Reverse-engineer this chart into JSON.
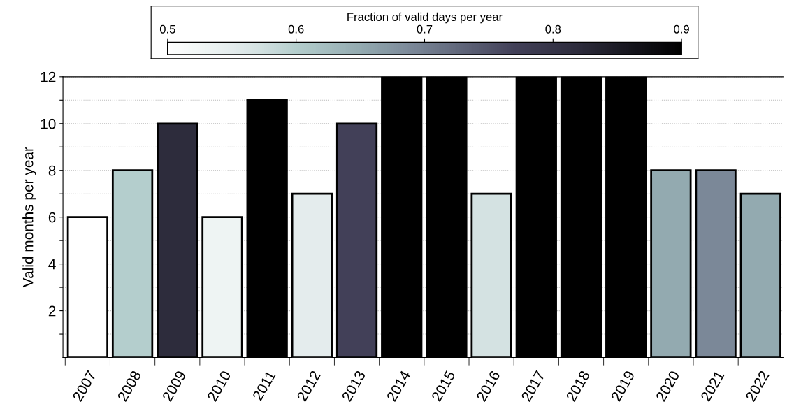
{
  "chart_data": {
    "type": "bar",
    "ylabel": "Valid months per year",
    "clabel": "Fraction of valid days per year",
    "categories": [
      "2007",
      "2008",
      "2009",
      "2010",
      "2011",
      "2012",
      "2013",
      "2014",
      "2015",
      "2016",
      "2017",
      "2018",
      "2019",
      "2020",
      "2021",
      "2022"
    ],
    "values": [
      6,
      8,
      10,
      6,
      11,
      7,
      10,
      12,
      12,
      7,
      12,
      12,
      12,
      8,
      8,
      7
    ],
    "cvalues": [
      0.5,
      0.6,
      0.82,
      0.53,
      0.9,
      0.55,
      0.77,
      0.9,
      0.9,
      0.57,
      0.9,
      0.9,
      0.9,
      0.65,
      0.69,
      0.65
    ],
    "colors": [
      "#ffffff",
      "#b4cecd",
      "#2d2c3c",
      "#eef4f3",
      "#000000",
      "#e4eced",
      "#424058",
      "#000000",
      "#000000",
      "#d4e2e2",
      "#000000",
      "#000000",
      "#000000",
      "#93aab0",
      "#7b8898",
      "#93aab0"
    ],
    "clim": [
      0.5,
      0.9
    ],
    "cticks": [
      0.5,
      0.6,
      0.7,
      0.8,
      0.9
    ],
    "ylim": [
      0,
      12
    ],
    "yticks": [
      {
        "value": 1,
        "label": null
      },
      2,
      {
        "value": 3,
        "label": null
      },
      4,
      {
        "value": 5,
        "label": null
      },
      6,
      {
        "value": 7,
        "label": null
      },
      8,
      {
        "value": 9,
        "label": null
      },
      10,
      {
        "value": 11,
        "label": null
      },
      12
    ],
    "grid": "y"
  }
}
